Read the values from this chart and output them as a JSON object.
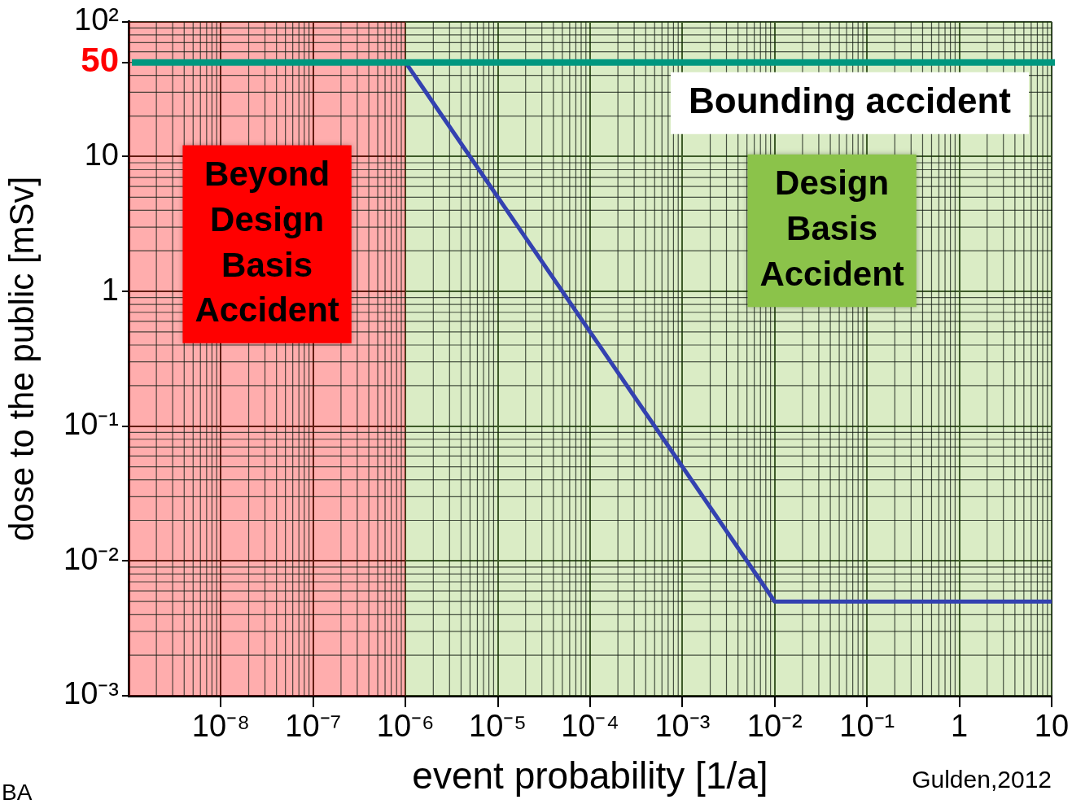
{
  "chart_data": {
    "type": "line",
    "xlabel": "event probability [1/a]",
    "ylabel": "dose to the public [mSv]",
    "log": "xy",
    "grid": true,
    "legend": false,
    "marker": "none",
    "line_style": "solid",
    "xlim": [
      1e-09,
      10
    ],
    "ylim": [
      0.001,
      100
    ],
    "xticks": [
      {
        "value": 1e-08,
        "label": "10⁻⁸"
      },
      {
        "value": 1e-07,
        "label": "10⁻⁷"
      },
      {
        "value": 1e-06,
        "label": "10⁻⁶"
      },
      {
        "value": 1e-05,
        "label": "10⁻⁵"
      },
      {
        "value": 0.0001,
        "label": "10⁻⁴"
      },
      {
        "value": 0.001,
        "label": "10⁻³"
      },
      {
        "value": 0.01,
        "label": "10⁻²"
      },
      {
        "value": 0.1,
        "label": "10⁻¹"
      },
      1,
      10
    ],
    "yticks": [
      {
        "value": 0.001,
        "label": "10⁻³"
      },
      {
        "value": 0.01,
        "label": "10⁻²"
      },
      {
        "value": 0.1,
        "label": "10⁻¹"
      },
      1,
      10,
      50,
      {
        "value": 100,
        "label": "10²"
      }
    ],
    "series": [
      {
        "color": "#3341b0",
        "x": [
          1e-06,
          0.01,
          10
        ],
        "values": [
          50,
          0.005,
          0.005
        ]
      }
    ],
    "ref_lines": [
      {
        "axis": "y",
        "value": 50,
        "label": "Bounding accident",
        "color": "#00977f"
      }
    ],
    "bands": [
      {
        "axis": "x",
        "from": 1e-09,
        "to": 1e-06,
        "label": "Beyond Design Basis Accident",
        "color": "#ff0000"
      },
      {
        "axis": "x",
        "from": 1e-06,
        "to": 10,
        "label": "Design Basis Accident",
        "color": "#8bc34a"
      }
    ],
    "annotations": [
      "Gulden,2012",
      "BA"
    ]
  }
}
